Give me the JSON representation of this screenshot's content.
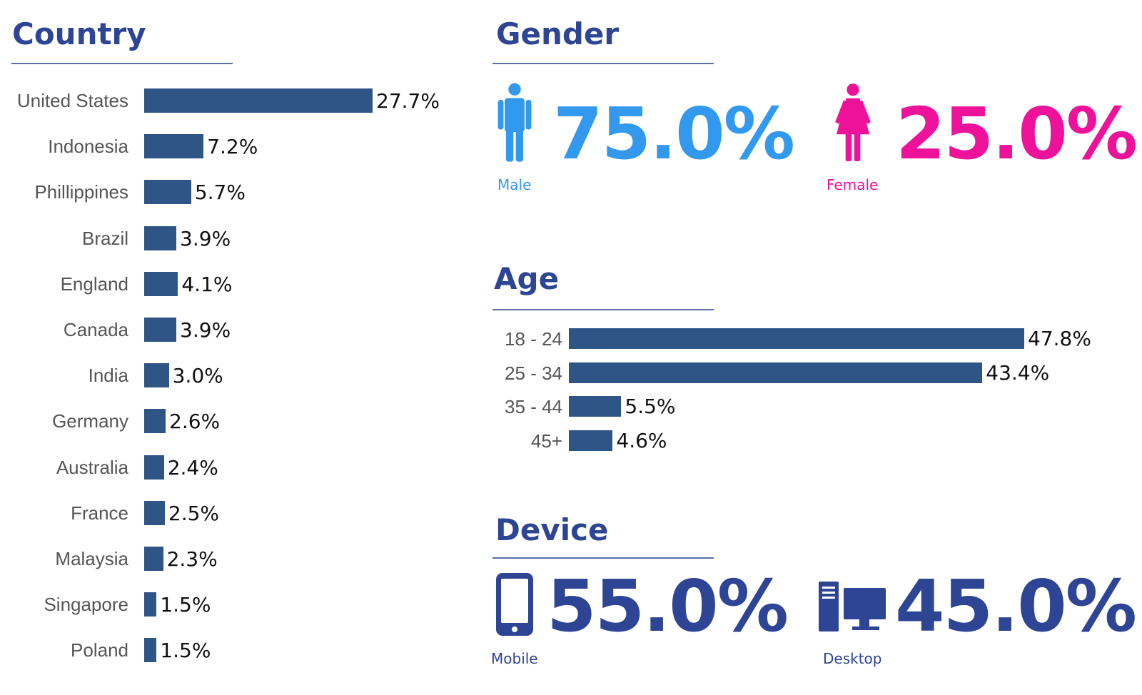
{
  "country": {
    "title": "Country",
    "bar_color": "#2f5587",
    "chart_data": {
      "type": "bar",
      "orientation": "horizontal",
      "categories": [
        "United States",
        "Indonesia",
        "Phillippines",
        "Brazil",
        "England",
        "Canada",
        "India",
        "Germany",
        "Australia",
        "France",
        "Malaysia",
        "Singapore",
        "Poland"
      ],
      "values": [
        27.7,
        7.2,
        5.7,
        3.9,
        4.1,
        3.9,
        3.0,
        2.6,
        2.4,
        2.5,
        2.3,
        1.5,
        1.5
      ],
      "labels": [
        "27.7%",
        "7.2%",
        "5.7%",
        "3.9%",
        "4.1%",
        "3.9%",
        "3.0%",
        "2.6%",
        "2.4%",
        "2.5%",
        "2.3%",
        "1.5%",
        "1.5%"
      ],
      "unit": "%"
    }
  },
  "gender": {
    "title": "Gender",
    "male": {
      "value": "75.0%",
      "label": "Male",
      "color": "#3399ee",
      "icon": "male-icon"
    },
    "female": {
      "value": "25.0%",
      "label": "Female",
      "color": "#ee1199",
      "icon": "female-icon"
    }
  },
  "age": {
    "title": "Age",
    "bar_color": "#2f5587",
    "chart_data": {
      "type": "bar",
      "orientation": "horizontal",
      "categories": [
        "18 - 24",
        "25 - 34",
        "35 - 44",
        "45+"
      ],
      "values": [
        47.8,
        43.4,
        5.5,
        4.6
      ],
      "labels": [
        "47.8%",
        "43.4%",
        "5.5%",
        "4.6%"
      ],
      "unit": "%"
    }
  },
  "device": {
    "title": "Device",
    "color": "#2e4494",
    "mobile": {
      "value": "55.0%",
      "label": "Mobile",
      "icon": "mobile-phone-icon"
    },
    "desktop": {
      "value": "45.0%",
      "label": "Desktop",
      "icon": "desktop-computer-icon"
    }
  }
}
